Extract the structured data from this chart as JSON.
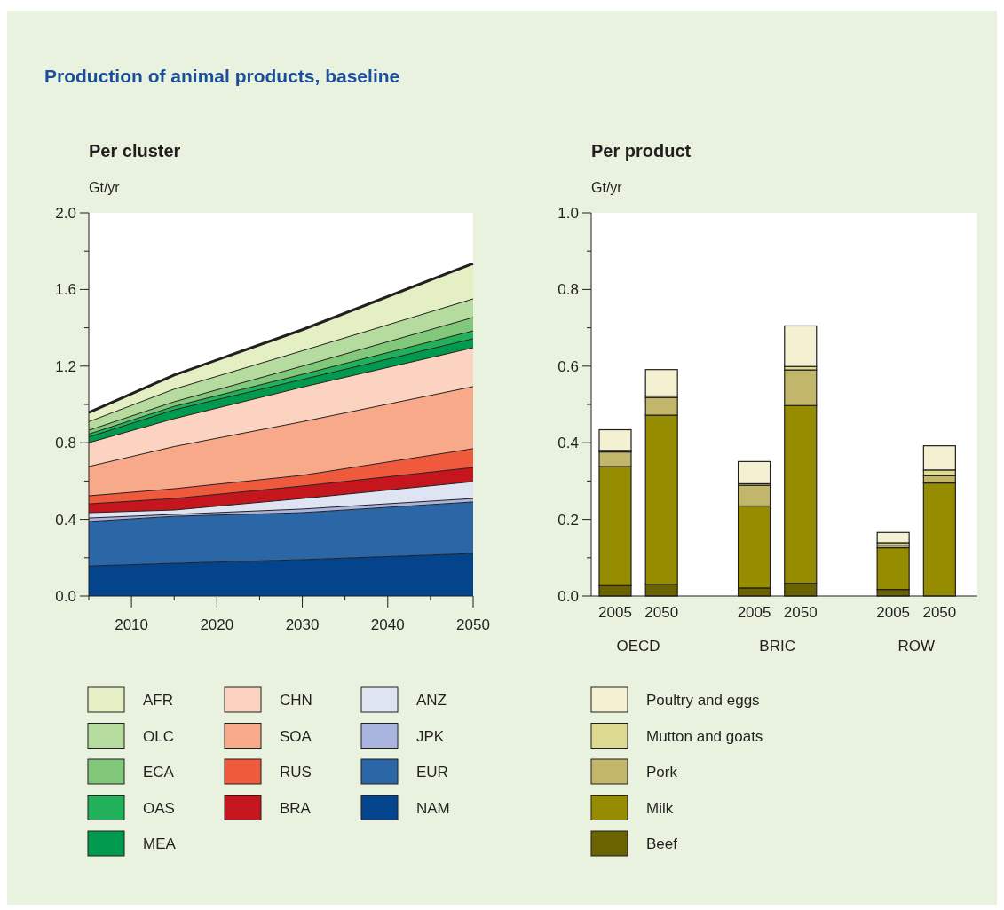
{
  "chart_data": [
    {
      "type": "area",
      "title": "Production of animal products, baseline",
      "subtitle": "Per cluster",
      "ylabel": "Gt/yr",
      "stacked": true,
      "legend": "bottom",
      "x": [
        2005,
        2015,
        2030,
        2050
      ],
      "xlim": [
        2005,
        2050
      ],
      "xticks": [
        {
          "value": 2005,
          "label": null
        },
        2010,
        {
          "value": 2015,
          "label": null
        },
        2020,
        {
          "value": 2025,
          "label": null
        },
        2030,
        {
          "value": 2035,
          "label": null
        },
        2040,
        {
          "value": 2045,
          "label": null
        },
        2050
      ],
      "ylim": [
        0,
        2
      ],
      "yticks": [
        {
          "value": 0,
          "label": "0.0"
        },
        {
          "value": 0.2,
          "label": null
        },
        {
          "value": 0.4,
          "label": "0.4"
        },
        {
          "value": 0.6,
          "label": null
        },
        {
          "value": 0.8,
          "label": "0.8"
        },
        {
          "value": 1,
          "label": null
        },
        {
          "value": 1.2,
          "label": "1.2"
        },
        {
          "value": 1.4,
          "label": null
        },
        {
          "value": 1.6,
          "label": "1.6"
        },
        {
          "value": 1.8,
          "label": null
        },
        {
          "value": 2,
          "label": "2.0"
        }
      ],
      "series": [
        {
          "name": "NAM",
          "color": "#03448c",
          "values": [
            0.157,
            0.171,
            0.19,
            0.222
          ]
        },
        {
          "name": "EUR",
          "color": "#2b67a7",
          "values": [
            0.232,
            0.245,
            0.245,
            0.269
          ]
        },
        {
          "name": "JPK",
          "color": "#a9b5df",
          "values": [
            0.018,
            0.01,
            0.019,
            0.018
          ]
        },
        {
          "name": "ANZ",
          "color": "#dfe4f2",
          "values": [
            0.028,
            0.023,
            0.055,
            0.088
          ]
        },
        {
          "name": "BRA",
          "color": "#c4161c",
          "values": [
            0.046,
            0.06,
            0.065,
            0.074
          ]
        },
        {
          "name": "RUS",
          "color": "#ef5a3c",
          "values": [
            0.042,
            0.051,
            0.056,
            0.098
          ]
        },
        {
          "name": "SOA",
          "color": "#f7a98a",
          "values": [
            0.153,
            0.22,
            0.28,
            0.324
          ]
        },
        {
          "name": "CHN",
          "color": "#fbd3c0",
          "values": [
            0.124,
            0.146,
            0.18,
            0.203
          ]
        },
        {
          "name": "MEA",
          "color": "#009a4e",
          "values": [
            0.03,
            0.046,
            0.04,
            0.047
          ]
        },
        {
          "name": "OAS",
          "color": "#23b05a",
          "values": [
            0.015,
            0.018,
            0.027,
            0.041
          ]
        },
        {
          "name": "ECA",
          "color": "#82c87a",
          "values": [
            0.02,
            0.024,
            0.043,
            0.07
          ]
        },
        {
          "name": "OLC",
          "color": "#b5dc9e",
          "values": [
            0.045,
            0.066,
            0.08,
            0.097
          ]
        },
        {
          "name": "AFR",
          "color": "#e5efc4",
          "values": [
            0.048,
            0.073,
            0.11,
            0.185
          ]
        }
      ]
    },
    {
      "type": "bar",
      "title": "Per product",
      "ylabel": "Gt/yr",
      "stacked": true,
      "legend": "bottom",
      "categories": [
        "2005",
        "2050",
        "2005",
        "2050",
        "2005",
        "2050"
      ],
      "annotations": [
        "OECD",
        "BRIC",
        "ROW"
      ],
      "ylim": [
        0,
        1
      ],
      "yticks": [
        {
          "value": 0,
          "label": "0.0"
        },
        {
          "value": 0.1,
          "label": null
        },
        {
          "value": 0.2,
          "label": "0.2"
        },
        {
          "value": 0.3,
          "label": null
        },
        {
          "value": 0.4,
          "label": "0.4"
        },
        {
          "value": 0.5,
          "label": null
        },
        {
          "value": 0.6,
          "label": "0.6"
        },
        {
          "value": 0.7,
          "label": null
        },
        {
          "value": 0.8,
          "label": "0.8"
        },
        {
          "value": 0.9,
          "label": null
        },
        {
          "value": 1,
          "label": "1.0"
        }
      ],
      "series": [
        {
          "name": "Beef",
          "color": "#6b6200",
          "values": [
            0.027,
            0.031,
            0.021,
            0.033,
            0.017,
            0
          ]
        },
        {
          "name": "Milk",
          "color": "#968c00",
          "values": [
            0.311,
            0.441,
            0.214,
            0.464,
            0.109,
            0.295
          ]
        },
        {
          "name": "Pork",
          "color": "#c2b66b",
          "values": [
            0.038,
            0.046,
            0.054,
            0.093,
            0.007,
            0.019
          ]
        },
        {
          "name": "Mutton and goats",
          "color": "#ded991",
          "values": [
            0.004,
            0.004,
            0.004,
            0.009,
            0.006,
            0.015
          ]
        },
        {
          "name": "Poultry and eggs",
          "color": "#f4f0d2",
          "values": [
            0.054,
            0.069,
            0.058,
            0.106,
            0.027,
            0.063
          ]
        }
      ]
    }
  ]
}
